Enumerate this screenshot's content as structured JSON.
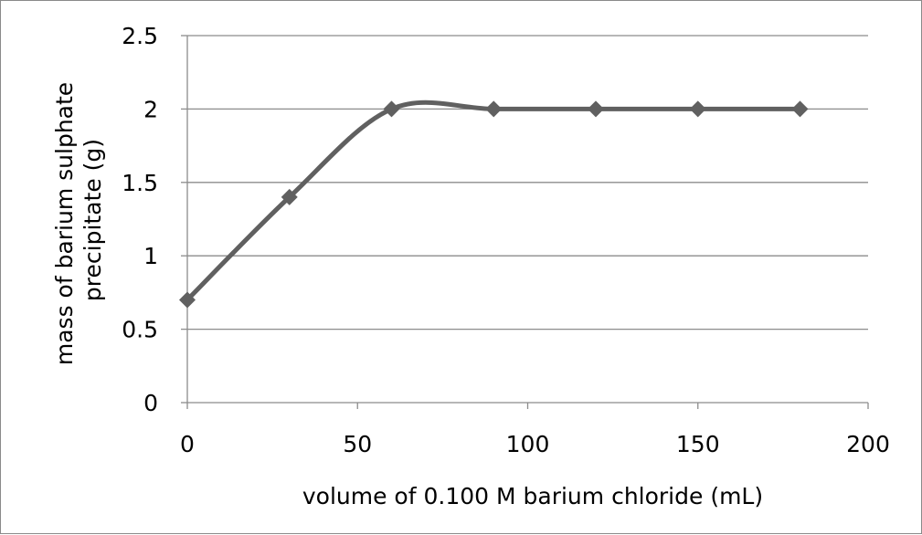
{
  "chart_data": {
    "type": "line",
    "title": "",
    "xlabel": "volume of 0.100 M barium chloride (mL)",
    "ylabel_lines": [
      "mass of barium sulphate",
      "precipitate (g)"
    ],
    "x": [
      0,
      30,
      60,
      90,
      120,
      150,
      180
    ],
    "series": [
      {
        "values": [
          0.7,
          1.4,
          2.0,
          2.0,
          2.0,
          2.0,
          2.0
        ]
      }
    ],
    "xlim": [
      0,
      200
    ],
    "ylim": [
      0,
      2.5
    ],
    "x_ticks": [
      "0",
      "50",
      "100",
      "150",
      "200"
    ],
    "y_ticks": [
      "0",
      "0.5",
      "1",
      "1.5",
      "2",
      "2.5"
    ],
    "grid": "horizontal major gridlines",
    "line_style": "smoothed",
    "marker": "diamond",
    "series_color": "#606060",
    "grid_color": "#8c8c8c",
    "legend": "none"
  }
}
